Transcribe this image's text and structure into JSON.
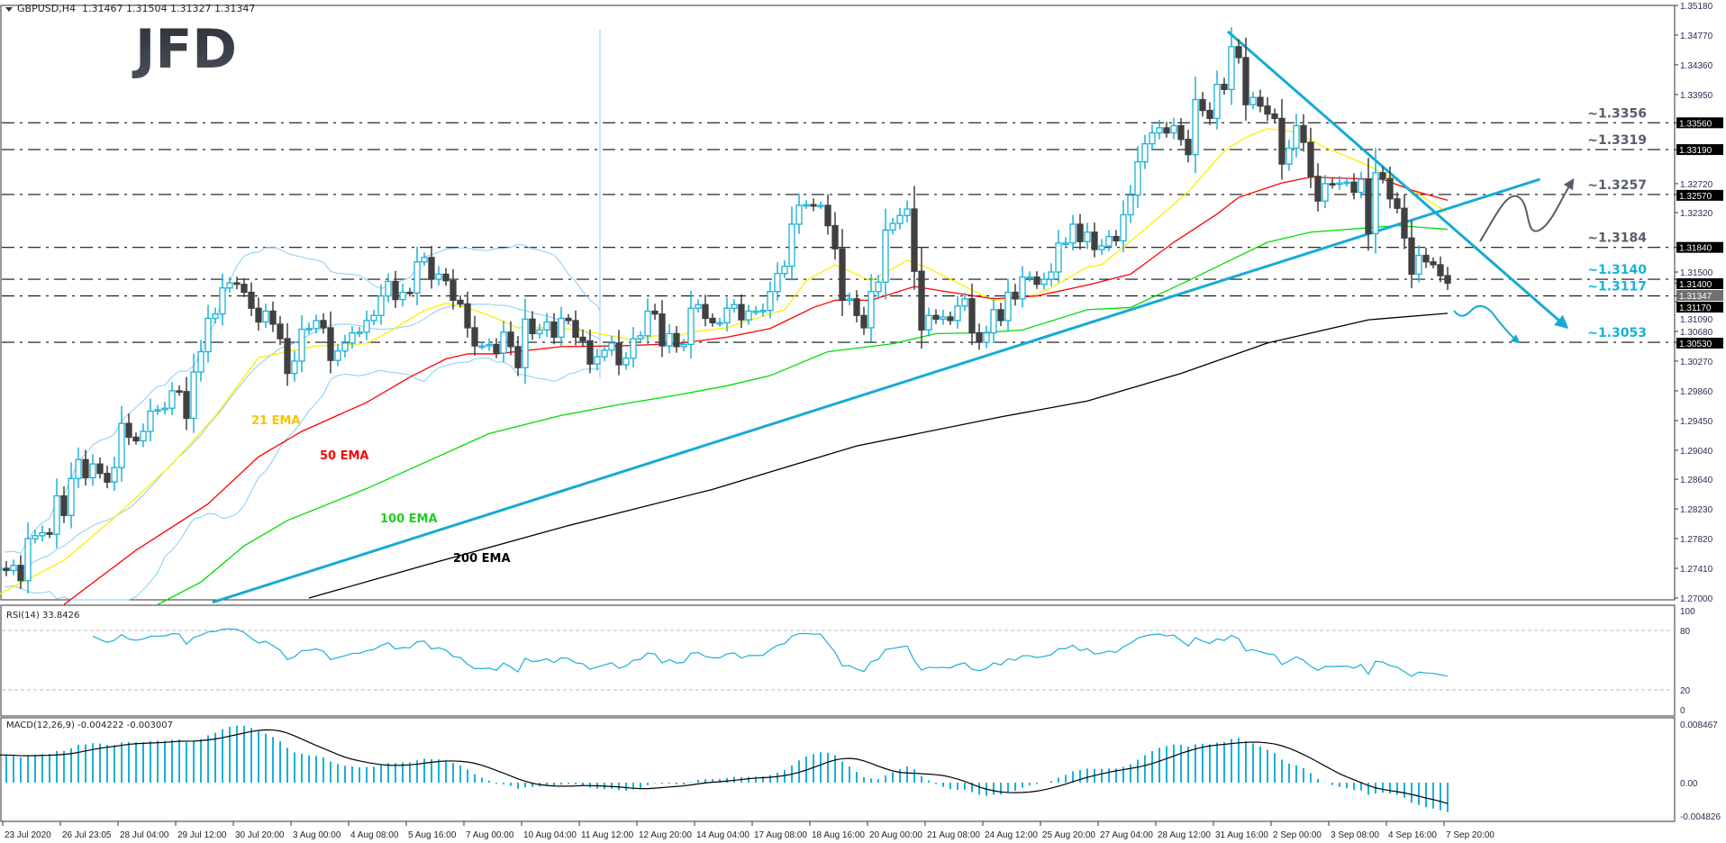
{
  "header": {
    "symbol": "GBPUSD,H4",
    "ohlc": "1.31467 1.31504 1.31327 1.31347"
  },
  "logo": "JFD",
  "colors": {
    "bull": "#1ab0d8",
    "bear": "#404040",
    "ema21": "#ffee00",
    "ema50": "#ff0000",
    "ema100": "#00dd00",
    "ema200": "#000000",
    "bands": "#87cdf5",
    "trend": "#17aad6",
    "level_dark": "#565e69",
    "level_blue": "#16b2dc"
  },
  "chart_data": [
    {
      "type": "candlestick",
      "symbol": "GBPUSD",
      "timeframe": "H4",
      "ylim": [
        1.27,
        1.3518
      ],
      "y_ticks": [
        "1.35180",
        "1.34770",
        "1.34360",
        "1.33950",
        "1.32720",
        "1.32320",
        "1.31500",
        "1.31090",
        "1.30680",
        "1.30270",
        "1.29860",
        "1.29450",
        "1.29040",
        "1.28640",
        "1.28230",
        "1.27820",
        "1.27410",
        "1.27000"
      ],
      "x_tick_labels": [
        "23 Jul 2020",
        "26 Jul 23:05",
        "28 Jul 04:00",
        "29 Jul 12:00",
        "30 Jul 20:00",
        "3 Aug 00:00",
        "4 Aug 08:00",
        "5 Aug 16:00",
        "7 Aug 00:00",
        "10 Aug 04:00",
        "11 Aug 12:00",
        "12 Aug 20:00",
        "14 Aug 04:00",
        "17 Aug 08:00",
        "18 Aug 16:00",
        "20 Aug 00:00",
        "21 Aug 08:00",
        "24 Aug 12:00",
        "25 Aug 20:00",
        "27 Aug 04:00",
        "28 Aug 12:00",
        "31 Aug 16:00",
        "2 Sep 00:00",
        "3 Sep 08:00",
        "4 Sep 16:00",
        "7 Sep 20:00"
      ],
      "first_open": 1.2745,
      "closes": [
        1.2739,
        1.2741,
        1.2738,
        1.2745,
        1.2724,
        1.2782,
        1.2786,
        1.279,
        1.2788,
        1.2841,
        1.2814,
        1.2865,
        1.2891,
        1.2866,
        1.2885,
        1.2872,
        1.286,
        1.288,
        1.2941,
        1.2922,
        1.2917,
        1.293,
        1.2958,
        1.296,
        1.2962,
        1.2986,
        1.2985,
        1.2948,
        1.3012,
        1.304,
        1.3086,
        1.3092,
        1.3128,
        1.3135,
        1.3133,
        1.3122,
        1.31,
        1.3081,
        1.3096,
        1.3078,
        1.3058,
        1.301,
        1.3027,
        1.3071,
        1.3072,
        1.3083,
        1.3073,
        1.3028,
        1.3041,
        1.3052,
        1.3066,
        1.3067,
        1.3083,
        1.309,
        1.3117,
        1.3137,
        1.3112,
        1.3122,
        1.3121,
        1.3164,
        1.317,
        1.314,
        1.3147,
        1.3138,
        1.3111,
        1.3106,
        1.3073,
        1.3048,
        1.3048,
        1.305,
        1.3038,
        1.3067,
        1.3047,
        1.3018,
        1.3085,
        1.3065,
        1.307,
        1.3081,
        1.306,
        1.3086,
        1.3083,
        1.306,
        1.3055,
        1.3023,
        1.3033,
        1.3042,
        1.3052,
        1.3022,
        1.3031,
        1.3058,
        1.3062,
        1.3096,
        1.3092,
        1.3048,
        1.3065,
        1.3047,
        1.305,
        1.31,
        1.3105,
        1.3086,
        1.308,
        1.308,
        1.31,
        1.3105,
        1.3084,
        1.3096,
        1.3096,
        1.3097,
        1.3123,
        1.3148,
        1.3158,
        1.3216,
        1.3242,
        1.3243,
        1.3241,
        1.3242,
        1.3214,
        1.3182,
        1.3111,
        1.3113,
        1.309,
        1.3073,
        1.3123,
        1.3136,
        1.3208,
        1.3217,
        1.3228,
        1.3237,
        1.3151,
        1.307,
        1.309,
        1.3085,
        1.3088,
        1.3083,
        1.3103,
        1.3113,
        1.3066,
        1.3053,
        1.3066,
        1.3098,
        1.3083,
        1.3122,
        1.3113,
        1.3143,
        1.3143,
        1.3133,
        1.314,
        1.315,
        1.319,
        1.319,
        1.3216,
        1.3192,
        1.3205,
        1.3181,
        1.3186,
        1.3199,
        1.3193,
        1.3229,
        1.3256,
        1.3302,
        1.3327,
        1.3342,
        1.3349,
        1.3342,
        1.3352,
        1.3333,
        1.3312,
        1.3388,
        1.3373,
        1.3362,
        1.3409,
        1.3402,
        1.3461,
        1.3446,
        1.3381,
        1.3391,
        1.3379,
        1.3368,
        1.3362,
        1.3299,
        1.3321,
        1.3352,
        1.3329,
        1.3282,
        1.3248,
        1.3272,
        1.3271,
        1.3273,
        1.3274,
        1.326,
        1.3278,
        1.3203,
        1.3287,
        1.3279,
        1.3251,
        1.3238,
        1.3197,
        1.3147,
        1.3173,
        1.3164,
        1.316,
        1.3145,
        1.31347
      ],
      "moving_averages": [
        {
          "name": "21 EMA",
          "color": "#ffee00",
          "label_color": "#f5c400",
          "points": [
            [
              0,
              1.27
            ],
            [
              10,
              1.2752
            ],
            [
              17,
              1.2811
            ],
            [
              25,
              1.2885
            ],
            [
              31,
              1.2951
            ],
            [
              37,
              1.3032
            ],
            [
              45,
              1.3048
            ],
            [
              52,
              1.3051
            ],
            [
              55,
              1.3067
            ],
            [
              60,
              1.3097
            ],
            [
              63,
              1.3107
            ],
            [
              66,
              1.3101
            ],
            [
              70,
              1.3086
            ],
            [
              73,
              1.3073
            ],
            [
              79,
              1.3073
            ],
            [
              83,
              1.3067
            ],
            [
              87,
              1.306
            ],
            [
              89,
              1.3055
            ],
            [
              92,
              1.3062
            ],
            [
              95,
              1.3061
            ],
            [
              97,
              1.3067
            ],
            [
              102,
              1.3073
            ],
            [
              104,
              1.308
            ],
            [
              110,
              1.3098
            ],
            [
              113,
              1.3138
            ],
            [
              117,
              1.316
            ],
            [
              122,
              1.3138
            ],
            [
              127,
              1.3166
            ],
            [
              130,
              1.3155
            ],
            [
              135,
              1.313
            ],
            [
              139,
              1.3111
            ],
            [
              143,
              1.3113
            ],
            [
              147,
              1.3128
            ],
            [
              152,
              1.3157
            ],
            [
              154,
              1.316
            ],
            [
              160,
              1.3209
            ],
            [
              166,
              1.3261
            ],
            [
              171,
              1.3317
            ],
            [
              174,
              1.3336
            ],
            [
              177,
              1.3348
            ],
            [
              181,
              1.3343
            ],
            [
              185,
              1.3322
            ],
            [
              191,
              1.3297
            ],
            [
              195,
              1.3276
            ],
            [
              202,
              1.3232
            ]
          ]
        },
        {
          "name": "50 EMA",
          "color": "#ff0000",
          "label_color": "#ff0000",
          "points": [
            [
              10,
              1.2691
            ],
            [
              20,
              1.2766
            ],
            [
              30,
              1.283
            ],
            [
              37,
              1.2895
            ],
            [
              43,
              1.293
            ],
            [
              52,
              1.297
            ],
            [
              58,
              1.3005
            ],
            [
              63,
              1.303
            ],
            [
              66,
              1.3037
            ],
            [
              70,
              1.3037
            ],
            [
              79,
              1.3047
            ],
            [
              87,
              1.3048
            ],
            [
              95,
              1.3051
            ],
            [
              102,
              1.306
            ],
            [
              108,
              1.3072
            ],
            [
              114,
              1.3101
            ],
            [
              117,
              1.3111
            ],
            [
              122,
              1.3111
            ],
            [
              128,
              1.313
            ],
            [
              133,
              1.3122
            ],
            [
              139,
              1.3113
            ],
            [
              145,
              1.3117
            ],
            [
              152,
              1.3132
            ],
            [
              158,
              1.3147
            ],
            [
              164,
              1.3191
            ],
            [
              170,
              1.323
            ],
            [
              173,
              1.3253
            ],
            [
              179,
              1.3273
            ],
            [
              183,
              1.3281
            ],
            [
              189,
              1.3279
            ],
            [
              193,
              1.3278
            ],
            [
              197,
              1.3263
            ],
            [
              202,
              1.3249
            ]
          ]
        },
        {
          "name": "100 EMA",
          "color": "#00dd00",
          "label_color": "#22cc22",
          "points": [
            [
              23,
              1.2691
            ],
            [
              29,
              1.2722
            ],
            [
              35,
              1.2772
            ],
            [
              41,
              1.2807
            ],
            [
              52,
              1.2851
            ],
            [
              69,
              1.2927
            ],
            [
              79,
              1.2952
            ],
            [
              87,
              1.2967
            ],
            [
              95,
              1.298
            ],
            [
              102,
              1.2993
            ],
            [
              108,
              1.3007
            ],
            [
              116,
              1.304
            ],
            [
              125,
              1.3051
            ],
            [
              131,
              1.3065
            ],
            [
              137,
              1.3066
            ],
            [
              143,
              1.307
            ],
            [
              152,
              1.3098
            ],
            [
              158,
              1.3101
            ],
            [
              166,
              1.3138
            ],
            [
              172,
              1.3167
            ],
            [
              177,
              1.3191
            ],
            [
              183,
              1.3205
            ],
            [
              191,
              1.3211
            ],
            [
              195,
              1.3214
            ],
            [
              202,
              1.3209
            ]
          ]
        },
        {
          "name": "200 EMA",
          "color": "#000000",
          "label_color": "#000000",
          "points": [
            [
              44,
              1.27
            ],
            [
              60,
              1.2745
            ],
            [
              80,
              1.28
            ],
            [
              100,
              1.285
            ],
            [
              120,
              1.291
            ],
            [
              140,
              1.295
            ],
            [
              152,
              1.2972
            ],
            [
              165,
              1.301
            ],
            [
              177,
              1.3052
            ],
            [
              191,
              1.3084
            ],
            [
              202,
              1.3093
            ]
          ]
        }
      ],
      "bollinger": {
        "period": 20,
        "deviations": 2
      },
      "levels": [
        {
          "price": 1.3356,
          "label": "~1.3356",
          "axis_label": "1.33560",
          "tone": "dark"
        },
        {
          "price": 1.3319,
          "label": "~1.3319",
          "axis_label": "1.33190",
          "tone": "dark"
        },
        {
          "price": 1.3257,
          "label": "~1.3257",
          "axis_label": "1.32570",
          "tone": "dark"
        },
        {
          "price": 1.3184,
          "label": "~1.3184",
          "axis_label": "1.31840",
          "tone": "dark"
        },
        {
          "price": 1.314,
          "label": "~1.3140",
          "axis_label": "1.31400",
          "tone": "blue"
        },
        {
          "price": 1.3117,
          "label": "~1.3117",
          "axis_label": "1.31170",
          "tone": "blue"
        },
        {
          "price": 1.3053,
          "label": "~1.3053",
          "axis_label": "1.30530",
          "tone": "blue"
        }
      ],
      "current_price": {
        "price": 1.31347,
        "label": "1.31347"
      },
      "trendlines": [
        {
          "name": "uptrend",
          "from": [
            30.6,
            1.2694
          ],
          "to": [
            214.8,
            1.3278
          ]
        },
        {
          "name": "downtrend",
          "from": [
            171.5,
            1.3482
          ],
          "to": [
            218.5,
            1.3074
          ],
          "arrow": true
        }
      ]
    },
    {
      "type": "line",
      "indicator": "RSI",
      "label": "RSI(14) 33.8426",
      "period": 14,
      "ylim": [
        0,
        100
      ],
      "y_ticks": [
        "100",
        "80",
        "20",
        "0"
      ],
      "levels": [
        80,
        20
      ]
    },
    {
      "type": "bar",
      "indicator": "MACD",
      "label": "MACD(12,26,9) -0.004222 -0.003007",
      "params": [
        12,
        26,
        9
      ],
      "ylim": [
        -0.004826,
        0.008467
      ],
      "y_ticks": [
        "0.008467",
        "0.00",
        "-0.004826"
      ]
    }
  ]
}
